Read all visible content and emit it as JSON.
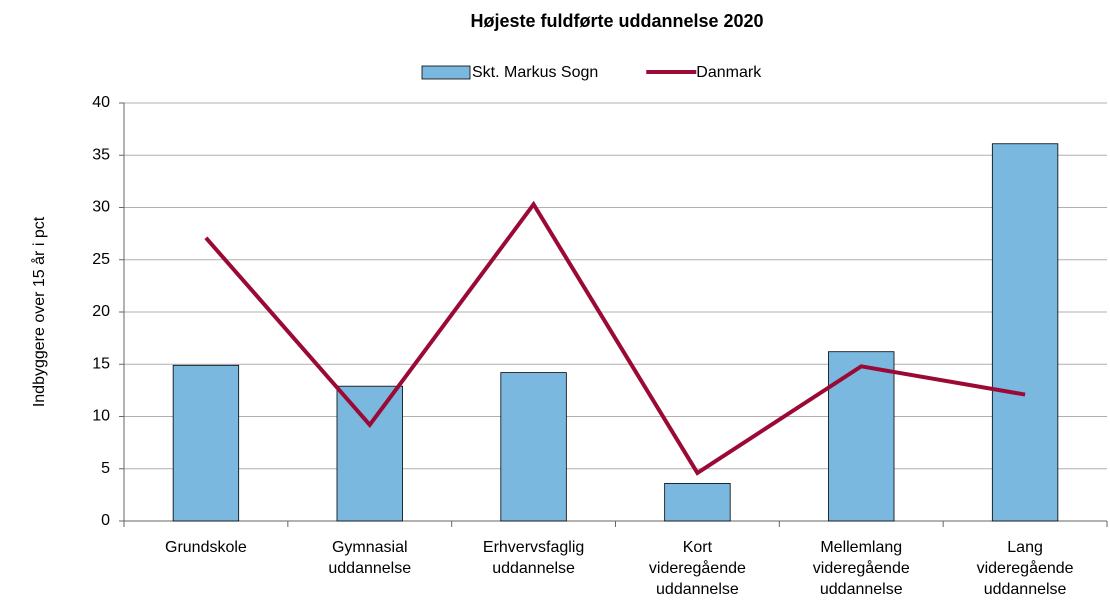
{
  "chart_data": {
    "type": "combo",
    "title": "Højeste fuldførte uddannelse 2020",
    "y_label": "Indbyggere over 15 år i pct",
    "categories": [
      "Grundskole",
      "Gymnasial uddannelse",
      "Erhvervsfaglig uddannelse",
      "Kort videregående uddannelse",
      "Mellemlang videregående uddannelse",
      "Lang videregående uddannelse"
    ],
    "series": [
      {
        "name": "Skt. Markus Sogn",
        "type": "bar",
        "color": "#7ab8df",
        "values": [
          14.9,
          12.9,
          14.2,
          3.6,
          16.2,
          36.1
        ]
      },
      {
        "name": "Danmark",
        "type": "line",
        "color": "#9b0a35",
        "values": [
          27.1,
          9.2,
          30.3,
          4.6,
          14.8,
          12.1
        ]
      }
    ],
    "ylim": [
      0,
      40
    ],
    "yticks": [
      0,
      5,
      10,
      15,
      20,
      25,
      30,
      35,
      40
    ],
    "grid": true,
    "legend": "top"
  }
}
